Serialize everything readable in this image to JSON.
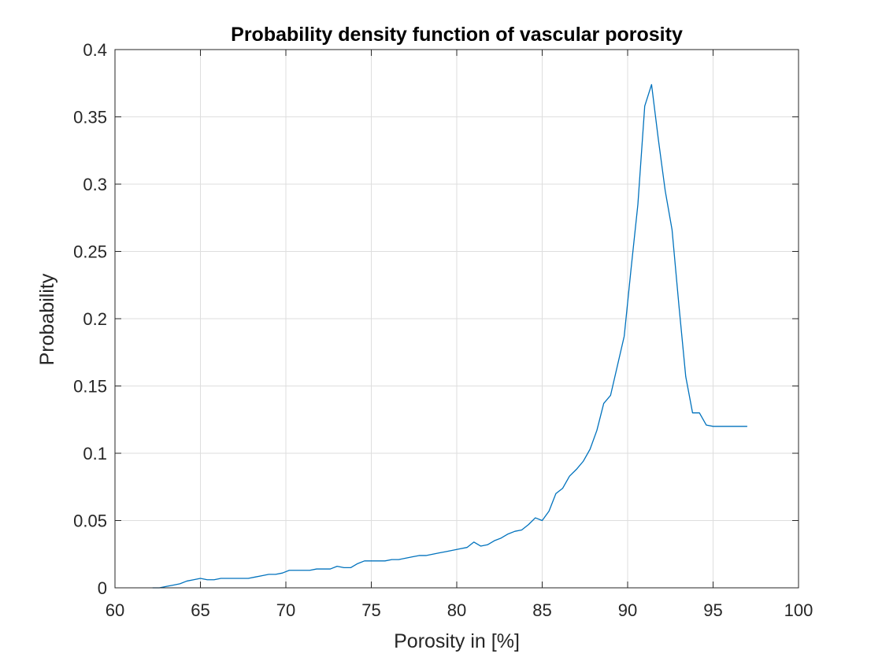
{
  "chart_data": {
    "type": "line",
    "title": "Probability density function of vascular porosity",
    "xlabel": "Porosity in [%]",
    "ylabel": "Probability",
    "xlim": [
      60,
      100
    ],
    "ylim": [
      0,
      0.4
    ],
    "xticks": [
      60,
      65,
      70,
      75,
      80,
      85,
      90,
      95,
      100
    ],
    "xtick_labels": [
      "60",
      "65",
      "70",
      "75",
      "80",
      "85",
      "90",
      "95",
      "100"
    ],
    "yticks": [
      0,
      0.05,
      0.1,
      0.15,
      0.2,
      0.25,
      0.3,
      0.35,
      0.4
    ],
    "ytick_labels": [
      "0",
      "0.05",
      "0.1",
      "0.15",
      "0.2",
      "0.25",
      "0.3",
      "0.35",
      "0.4"
    ],
    "grid": true,
    "legend": "none",
    "series": [
      {
        "color": "#0072bd",
        "x": [
          62.2,
          62.6,
          63.0,
          63.4,
          63.8,
          64.2,
          64.6,
          65.0,
          65.4,
          65.8,
          66.2,
          66.6,
          67.0,
          67.4,
          67.8,
          68.2,
          68.6,
          69.0,
          69.4,
          69.8,
          70.2,
          70.6,
          71.0,
          71.4,
          71.8,
          72.2,
          72.6,
          73.0,
          73.4,
          73.8,
          74.2,
          74.6,
          75.0,
          75.4,
          75.8,
          76.2,
          76.6,
          77.0,
          77.4,
          77.8,
          78.2,
          78.6,
          79.0,
          79.4,
          79.8,
          80.2,
          80.6,
          81.0,
          81.4,
          81.8,
          82.2,
          82.6,
          83.0,
          83.4,
          83.8,
          84.2,
          84.6,
          85.0,
          85.4,
          85.8,
          86.2,
          86.6,
          87.0,
          87.4,
          87.8,
          88.2,
          88.6,
          89.0,
          89.4,
          89.8,
          90.2,
          90.6,
          91.0,
          91.4,
          91.8,
          92.2,
          92.6,
          93.0,
          93.4,
          93.8,
          94.2,
          94.6,
          95.0,
          95.4,
          95.8,
          96.2,
          96.6,
          97.0
        ],
        "y": [
          0.0,
          0.0,
          0.001,
          0.002,
          0.003,
          0.005,
          0.006,
          0.007,
          0.006,
          0.006,
          0.007,
          0.007,
          0.007,
          0.007,
          0.007,
          0.008,
          0.009,
          0.01,
          0.01,
          0.011,
          0.013,
          0.013,
          0.013,
          0.013,
          0.014,
          0.014,
          0.014,
          0.016,
          0.015,
          0.015,
          0.018,
          0.02,
          0.02,
          0.02,
          0.02,
          0.021,
          0.021,
          0.022,
          0.023,
          0.024,
          0.024,
          0.025,
          0.026,
          0.027,
          0.028,
          0.029,
          0.03,
          0.034,
          0.031,
          0.032,
          0.035,
          0.037,
          0.04,
          0.042,
          0.043,
          0.047,
          0.052,
          0.05,
          0.057,
          0.07,
          0.074,
          0.083,
          0.088,
          0.094,
          0.103,
          0.117,
          0.137,
          0.143,
          0.165,
          0.187,
          0.237,
          0.285,
          0.358,
          0.374,
          0.333,
          0.295,
          0.266,
          0.21,
          0.157,
          0.13,
          0.13,
          0.121,
          0.12,
          0.12,
          0.12,
          0.12,
          0.12,
          0.12
        ]
      }
    ]
  }
}
